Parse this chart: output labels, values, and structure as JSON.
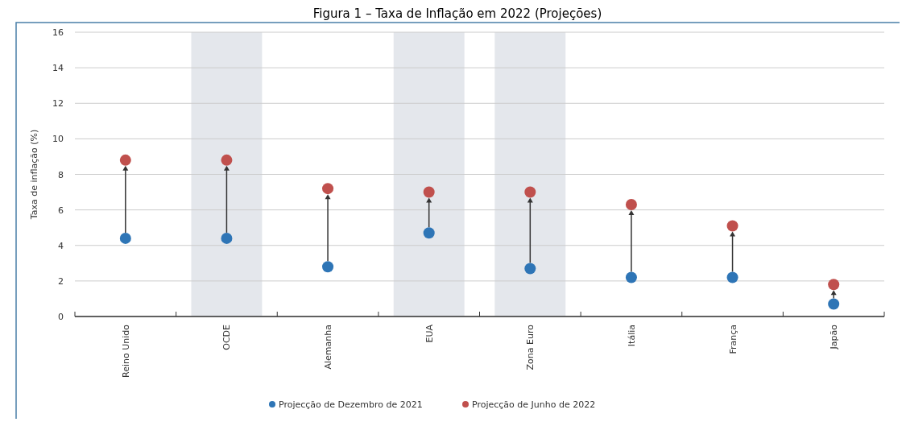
{
  "chart_data": {
    "type": "scatter",
    "title": "Figura 1 – Taxa de Inflação em 2022 (Projeções)",
    "ylabel": "Taxa de inflação (%)",
    "categories": [
      "Reino Unido",
      "OCDE",
      "Alemanha",
      "EUA",
      "Zona Euro",
      "Itália",
      "França",
      "Japão"
    ],
    "series": [
      {
        "name": "Projecção de Dezembro de 2021",
        "color": "#2e75b6",
        "values": [
          4.4,
          4.4,
          2.8,
          4.7,
          2.7,
          2.2,
          2.2,
          0.7
        ]
      },
      {
        "name": "Projecção de Junho de 2022",
        "color": "#c0504d",
        "values": [
          8.8,
          8.8,
          7.2,
          7.0,
          7.0,
          6.3,
          5.1,
          1.8
        ]
      }
    ],
    "ylim": [
      0,
      16
    ],
    "yticks": [
      0,
      2,
      4,
      6,
      8,
      10,
      12,
      14,
      16
    ],
    "grid": "y",
    "legend": "bottom",
    "marker": "circle",
    "bands": [
      {
        "axis": "x",
        "from": "OCDE",
        "to": "OCDE",
        "color": "#e4e7ec"
      },
      {
        "axis": "x",
        "from": "EUA",
        "to": "EUA",
        "color": "#e4e7ec"
      },
      {
        "axis": "x",
        "from": "Zona Euro",
        "to": "Zona Euro",
        "color": "#e4e7ec"
      }
    ]
  }
}
